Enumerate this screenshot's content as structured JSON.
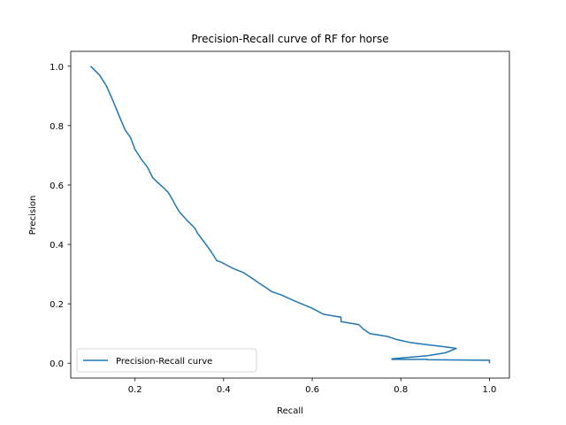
{
  "chart_data": {
    "type": "line",
    "title": "Precision-Recall curve of RF for horse",
    "xlabel": "Recall",
    "ylabel": "Precision",
    "xlim": [
      0.055,
      1.045
    ],
    "ylim": [
      -0.05,
      1.05
    ],
    "x_ticks": [
      0.2,
      0.4,
      0.6,
      0.8,
      1.0
    ],
    "x_tick_labels": [
      "0.2",
      "0.4",
      "0.6",
      "0.8",
      "1.0"
    ],
    "y_ticks": [
      0.0,
      0.2,
      0.4,
      0.6,
      0.8,
      1.0
    ],
    "y_tick_labels": [
      "0.0",
      "0.2",
      "0.4",
      "0.6",
      "0.8",
      "1.0"
    ],
    "grid": false,
    "legend_position": "lower-left",
    "series": [
      {
        "name": "Precision-Recall curve",
        "color": "#1f77b4",
        "x": [
          0.1,
          0.12,
          0.135,
          0.15,
          0.165,
          0.178,
          0.19,
          0.2,
          0.215,
          0.228,
          0.24,
          0.25,
          0.265,
          0.275,
          0.285,
          0.292,
          0.3,
          0.318,
          0.335,
          0.34,
          0.36,
          0.365,
          0.37,
          0.385,
          0.395,
          0.42,
          0.445,
          0.47,
          0.48,
          0.49,
          0.51,
          0.53,
          0.56,
          0.6,
          0.625,
          0.665,
          0.665,
          0.705,
          0.715,
          0.73,
          0.75,
          0.77,
          0.79,
          0.82,
          0.86,
          0.9,
          0.925,
          0.9,
          0.86,
          0.82,
          0.78,
          0.78,
          0.86,
          0.86,
          1.0,
          1.0
        ],
        "y": [
          1.0,
          0.97,
          0.935,
          0.885,
          0.83,
          0.785,
          0.76,
          0.72,
          0.685,
          0.66,
          0.625,
          0.61,
          0.59,
          0.575,
          0.55,
          0.53,
          0.51,
          0.48,
          0.455,
          0.44,
          0.4,
          0.39,
          0.38,
          0.345,
          0.34,
          0.32,
          0.305,
          0.28,
          0.27,
          0.26,
          0.24,
          0.23,
          0.21,
          0.185,
          0.165,
          0.155,
          0.14,
          0.13,
          0.115,
          0.1,
          0.095,
          0.09,
          0.08,
          0.07,
          0.062,
          0.055,
          0.05,
          0.035,
          0.025,
          0.02,
          0.015,
          0.013,
          0.013,
          0.012,
          0.01,
          0.0
        ]
      }
    ]
  }
}
